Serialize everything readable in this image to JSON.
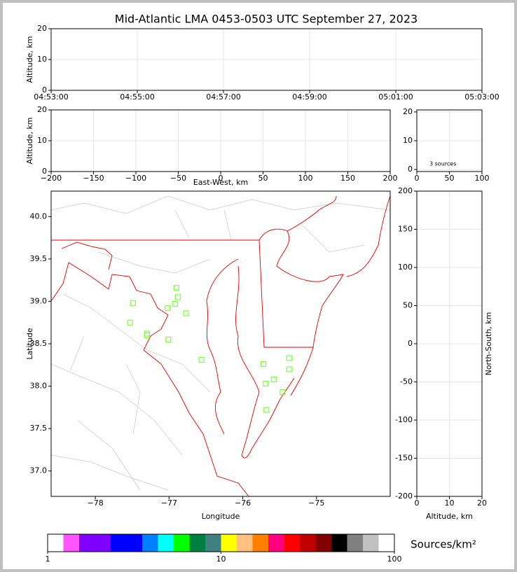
{
  "title": "Mid-Atlantic LMA 0453-0503 UTC September 27, 2023",
  "chart_data": [
    {
      "type": "line",
      "ylabel": "Altitude, km",
      "xlim": [
        "04:53:00",
        "05:03:00"
      ],
      "xticks": [
        "04:53:00",
        "04:55:00",
        "04:57:00",
        "04:59:00",
        "05:01:00",
        "05:03:00"
      ],
      "ylim": [
        0,
        20
      ],
      "yticks": [
        0,
        10,
        20
      ],
      "grid": true
    },
    {
      "type": "scatter",
      "xlabel": "East-West, km",
      "ylabel": "Altitude, km",
      "xlim": [
        -200,
        200
      ],
      "xticks": [
        {
          "value": -200,
          "label": "−200"
        },
        {
          "value": -150,
          "label": "−150"
        },
        {
          "value": -100,
          "label": "−100"
        },
        {
          "value": -50,
          "label": "−50"
        },
        0,
        50,
        100,
        150,
        200
      ],
      "ylim": [
        0,
        20
      ],
      "yticks": [
        0,
        10,
        20
      ],
      "grid": true
    },
    {
      "type": "scatter",
      "annotation": "3 sources",
      "xlim": [
        0,
        100
      ],
      "xticks": [
        0,
        50,
        100
      ],
      "ylim": [
        -0.7,
        20.7
      ],
      "yticks": [
        0,
        10,
        20
      ],
      "grid": true
    },
    {
      "type": "scatter",
      "xlabel": "Longitude",
      "ylabel": "Latitude",
      "color": "#80ff40",
      "grid": false,
      "xlim": [
        -78.6,
        -74.0
      ],
      "ylim": [
        36.7,
        40.3
      ],
      "xticks": [
        {
          "value": -78,
          "label": "−78"
        },
        {
          "value": -77,
          "label": "−77"
        },
        {
          "value": -76,
          "label": "−76"
        },
        {
          "value": -75,
          "label": "−75"
        }
      ],
      "yticks": [
        {
          "value": 37.0,
          "label": "37.0"
        },
        37.5,
        {
          "value": 38.0,
          "label": "38.0"
        },
        38.5,
        {
          "value": 39.0,
          "label": "39.0"
        },
        39.5,
        {
          "value": 40.0,
          "label": "40.0"
        }
      ],
      "x": [
        -76.9,
        -76.88,
        -76.92,
        -77.02,
        -76.77,
        -77.49,
        -77.53,
        -77.3,
        -77.3,
        -77.01,
        -76.56,
        -75.72,
        -75.37,
        -75.37,
        -75.69,
        -75.58,
        -75.46,
        -75.68
      ],
      "values": [
        39.16,
        39.05,
        38.97,
        38.92,
        38.86,
        38.98,
        38.75,
        38.62,
        38.6,
        38.55,
        38.31,
        38.26,
        38.33,
        38.2,
        38.03,
        38.08,
        37.93,
        37.72
      ]
    },
    {
      "type": "scatter",
      "xlabel": "Altitude, km",
      "ylabel": "North-South, km",
      "xlim": [
        0,
        20
      ],
      "xticks": [
        0,
        10,
        20
      ],
      "ylim": [
        -200,
        200
      ],
      "yticks": [
        -200,
        -150,
        -100,
        -50,
        0,
        50,
        100,
        150,
        200
      ],
      "grid": true
    }
  ],
  "colorbar": {
    "label": "Sources/km²",
    "log": true,
    "lim": [
      1,
      100
    ],
    "ticks": [
      1,
      10,
      100
    ],
    "colors": [
      "#ffffff",
      "#ff55ff",
      "#8000ff",
      "#8000ff",
      "#0000ff",
      "#0000ff",
      "#0080ff",
      "#00ffff",
      "#00ff00",
      "#008040",
      "#408080",
      "#ffff00",
      "#ffc080",
      "#ff8000",
      "#ff0080",
      "#ff0000",
      "#c00000",
      "#800000",
      "#000000",
      "#808080",
      "#c0c0c0",
      "#ffffff"
    ]
  }
}
